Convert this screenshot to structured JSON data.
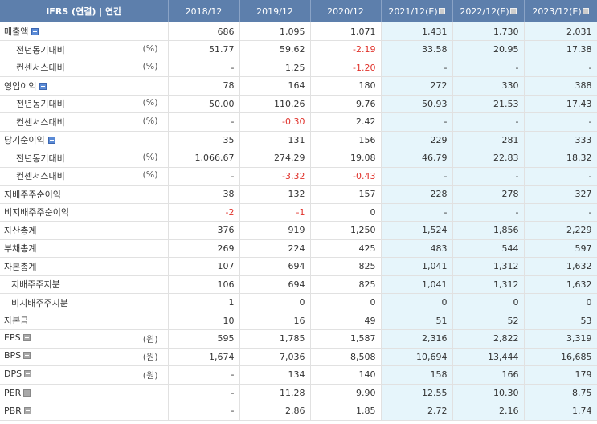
{
  "header": {
    "title": "IFRS (연결) | 연간",
    "columns": [
      "2018/12",
      "2019/12",
      "2020/12",
      "2021/12(E)",
      "2022/12(E)",
      "2023/12(E)"
    ],
    "estimate_flags": [
      false,
      false,
      false,
      true,
      true,
      true
    ]
  },
  "rows": [
    {
      "label": "매출액",
      "unit": "",
      "level": 0,
      "icon": "minus",
      "values": [
        "686",
        "1,095",
        "1,071",
        "1,431",
        "1,730",
        "2,031"
      ]
    },
    {
      "label": "전년동기대비",
      "unit": "(%)",
      "level": 1,
      "icon": "",
      "values": [
        "51.77",
        "59.62",
        "-2.19",
        "33.58",
        "20.95",
        "17.38"
      ]
    },
    {
      "label": "컨센서스대비",
      "unit": "(%)",
      "level": 1,
      "icon": "",
      "values": [
        "-",
        "1.25",
        "-1.20",
        "-",
        "-",
        "-"
      ]
    },
    {
      "label": "영업이익",
      "unit": "",
      "level": 0,
      "icon": "minus",
      "values": [
        "78",
        "164",
        "180",
        "272",
        "330",
        "388"
      ]
    },
    {
      "label": "전년동기대비",
      "unit": "(%)",
      "level": 1,
      "icon": "",
      "values": [
        "50.00",
        "110.26",
        "9.76",
        "50.93",
        "21.53",
        "17.43"
      ]
    },
    {
      "label": "컨센서스대비",
      "unit": "(%)",
      "level": 1,
      "icon": "",
      "values": [
        "-",
        "-0.30",
        "2.42",
        "-",
        "-",
        "-"
      ]
    },
    {
      "label": "당기순이익",
      "unit": "",
      "level": 0,
      "icon": "minus",
      "values": [
        "35",
        "131",
        "156",
        "229",
        "281",
        "333"
      ]
    },
    {
      "label": "전년동기대비",
      "unit": "(%)",
      "level": 1,
      "icon": "",
      "values": [
        "1,066.67",
        "274.29",
        "19.08",
        "46.79",
        "22.83",
        "18.32"
      ]
    },
    {
      "label": "컨센서스대비",
      "unit": "(%)",
      "level": 1,
      "icon": "",
      "values": [
        "-",
        "-3.32",
        "-0.43",
        "-",
        "-",
        "-"
      ]
    },
    {
      "label": "지배주주순이익",
      "unit": "",
      "level": 0,
      "icon": "",
      "values": [
        "38",
        "132",
        "157",
        "228",
        "278",
        "327"
      ]
    },
    {
      "label": "비지배주주순이익",
      "unit": "",
      "level": 0,
      "icon": "",
      "values": [
        "-2",
        "-1",
        "0",
        "-",
        "-",
        "-"
      ]
    },
    {
      "label": "자산총계",
      "unit": "",
      "level": 0,
      "icon": "",
      "values": [
        "376",
        "919",
        "1,250",
        "1,524",
        "1,856",
        "2,229"
      ]
    },
    {
      "label": "부채총계",
      "unit": "",
      "level": 0,
      "icon": "",
      "values": [
        "269",
        "224",
        "425",
        "483",
        "544",
        "597"
      ]
    },
    {
      "label": "자본총계",
      "unit": "",
      "level": 0,
      "icon": "",
      "values": [
        "107",
        "694",
        "825",
        "1,041",
        "1,312",
        "1,632"
      ]
    },
    {
      "label": "지배주주지분",
      "unit": "",
      "level": 2,
      "icon": "",
      "values": [
        "106",
        "694",
        "825",
        "1,041",
        "1,312",
        "1,632"
      ]
    },
    {
      "label": "비지배주주지분",
      "unit": "",
      "level": 2,
      "icon": "",
      "values": [
        "1",
        "0",
        "0",
        "0",
        "0",
        "0"
      ]
    },
    {
      "label": "자본금",
      "unit": "",
      "level": 0,
      "icon": "",
      "values": [
        "10",
        "16",
        "49",
        "51",
        "52",
        "53"
      ]
    },
    {
      "label": "EPS",
      "unit": "(원)",
      "level": 0,
      "icon": "info",
      "values": [
        "595",
        "1,785",
        "1,587",
        "2,316",
        "2,822",
        "3,319"
      ]
    },
    {
      "label": "BPS",
      "unit": "(원)",
      "level": 0,
      "icon": "info",
      "values": [
        "1,674",
        "7,036",
        "8,508",
        "10,694",
        "13,444",
        "16,685"
      ]
    },
    {
      "label": "DPS",
      "unit": "(원)",
      "level": 0,
      "icon": "info",
      "values": [
        "-",
        "134",
        "140",
        "158",
        "166",
        "179"
      ]
    },
    {
      "label": "PER",
      "unit": "",
      "level": 0,
      "icon": "info",
      "values": [
        "-",
        "11.28",
        "9.90",
        "12.55",
        "10.30",
        "8.75"
      ]
    },
    {
      "label": "PBR",
      "unit": "",
      "level": 0,
      "icon": "info",
      "values": [
        "-",
        "2.86",
        "1.85",
        "2.72",
        "2.16",
        "1.74"
      ]
    }
  ],
  "colors": {
    "header_bg": "#5d7fac",
    "estimate_bg": "#e6f5fb",
    "negative": "#e0312a"
  }
}
